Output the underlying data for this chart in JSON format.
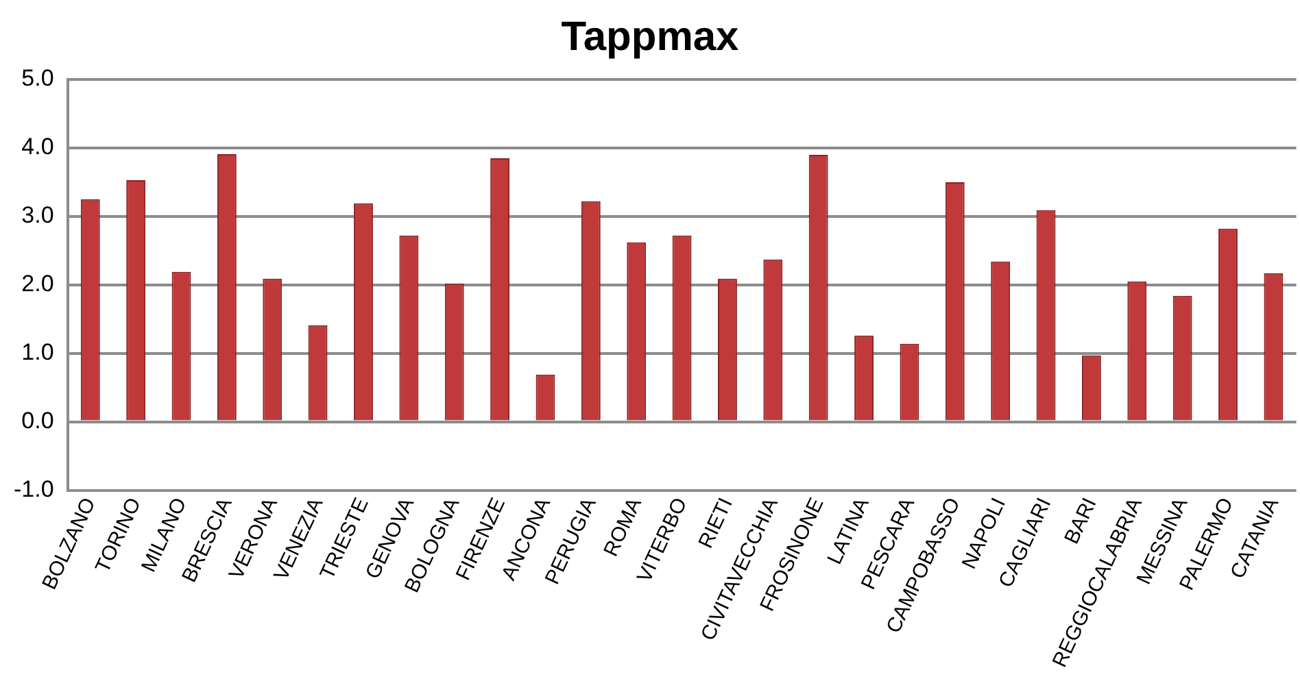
{
  "chart_data": {
    "type": "bar",
    "title": "Tappmax",
    "categories": [
      "BOLZANO",
      "TORINO",
      "MILANO",
      "BRESCIA",
      "VERONA",
      "VENEZIA",
      "TRIESTE",
      "GENOVA",
      "BOLOGNA",
      "FIRENZE",
      "ANCONA",
      "PERUGIA",
      "ROMA",
      "VITERBO",
      "RIETI",
      "CIVITAVECCHIA",
      "FROSINONE",
      "LATINA",
      "PESCARA",
      "CAMPOBASSO",
      "NAPOLI",
      "CAGLIARI",
      "BARI",
      "REGGIOCALABRIA",
      "MESSINA",
      "PALERMO",
      "CATANIA"
    ],
    "values": [
      3.25,
      3.53,
      2.19,
      3.91,
      2.09,
      1.41,
      3.19,
      2.72,
      2.02,
      3.85,
      0.69,
      3.22,
      2.62,
      2.72,
      2.09,
      2.37,
      3.9,
      1.26,
      1.14,
      3.5,
      2.34,
      3.09,
      0.97,
      2.05,
      1.84,
      2.82,
      2.17
    ],
    "color": "#c0393b",
    "ylim": [
      -1,
      5
    ],
    "yticks": [
      {
        "value": -1,
        "label": "-1.0"
      },
      {
        "value": 0,
        "label": "0.0"
      },
      {
        "value": 1,
        "label": "1.0"
      },
      {
        "value": 2,
        "label": "2.0"
      },
      {
        "value": 3,
        "label": "3.0"
      },
      {
        "value": 4,
        "label": "4.0"
      },
      {
        "value": 5,
        "label": "5.0"
      }
    ],
    "grid": "y",
    "legend": false
  }
}
